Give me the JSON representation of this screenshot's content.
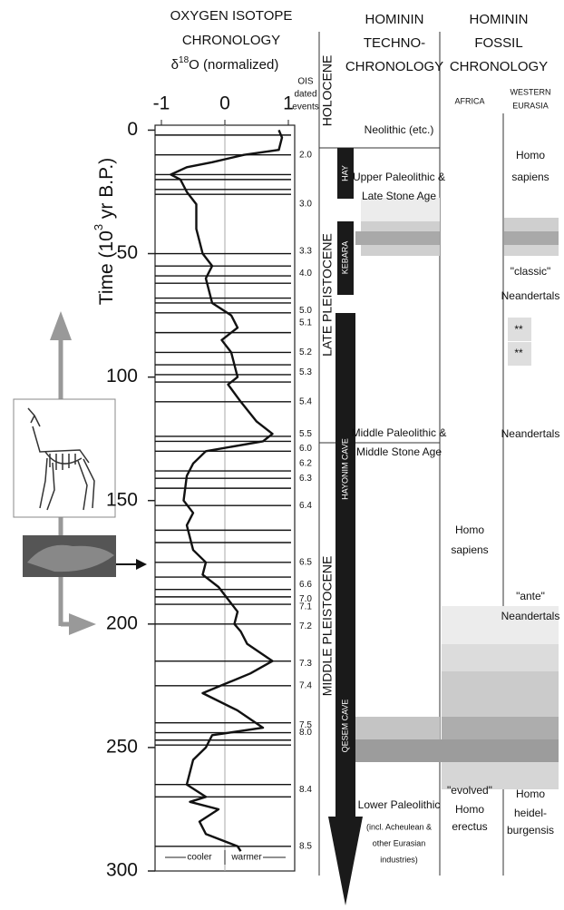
{
  "chart_data": {
    "type": "line",
    "title_lines": [
      "OXYGEN ISOTOPE",
      "CHRONOLOGY"
    ],
    "value_axis_label": {
      "symbol": "δ",
      "superscript": "18",
      "rest": "O (normalized)"
    },
    "time_axis_label": {
      "before": "Time (10",
      "superscript": "3",
      "after": " yr B.P.)"
    },
    "x": [
      0,
      3,
      8,
      10,
      13,
      15,
      18,
      20,
      25,
      30,
      40,
      50,
      55,
      60,
      65,
      70,
      75,
      80,
      85,
      90,
      95,
      100,
      103,
      110,
      118,
      123,
      126,
      130,
      135,
      140,
      150,
      155,
      160,
      170,
      175,
      180,
      185,
      190,
      195,
      200,
      203,
      208,
      215,
      220,
      228,
      235,
      242,
      245,
      250,
      255,
      260,
      265,
      270,
      272,
      275,
      280,
      285,
      290,
      292
    ],
    "series": [
      {
        "color": "#111111",
        "values": [
          0.85,
          0.9,
          0.85,
          0.3,
          -0.2,
          -0.6,
          -0.85,
          -0.7,
          -0.6,
          -0.45,
          -0.45,
          -0.35,
          -0.2,
          -0.3,
          -0.25,
          -0.2,
          0.1,
          0.2,
          -0.05,
          0.1,
          0.15,
          0.2,
          0.05,
          0.25,
          0.5,
          0.75,
          0.6,
          -0.3,
          -0.5,
          -0.6,
          -0.65,
          -0.5,
          -0.6,
          -0.5,
          -0.3,
          -0.35,
          -0.1,
          0.05,
          0.2,
          0.15,
          0.25,
          0.35,
          0.75,
          0.4,
          -0.35,
          0.2,
          0.6,
          -0.2,
          -0.3,
          -0.5,
          -0.55,
          -0.6,
          -0.3,
          -0.55,
          -0.1,
          -0.4,
          -0.3,
          0.2,
          0.25
        ]
      }
    ],
    "xlim": [
      -2,
      300
    ],
    "xticks": [
      0,
      50,
      100,
      150,
      200,
      250,
      300
    ],
    "ylim": [
      -1.1,
      1.1
    ],
    "yticks": [
      -1,
      0,
      1
    ],
    "zero_line": true,
    "event_lines": [
      2,
      10,
      18,
      20,
      24,
      26,
      50,
      55,
      59,
      62,
      68,
      70,
      74,
      82,
      90,
      95,
      99,
      102,
      110,
      124,
      126,
      130,
      138,
      141,
      145,
      152,
      162,
      167,
      175,
      181,
      186,
      189,
      192,
      200,
      215,
      225,
      240,
      244,
      247,
      249,
      265,
      270,
      290
    ],
    "ois_header": [
      "OIS",
      "dated",
      "events"
    ],
    "ois_events": [
      {
        "label": "2.0",
        "time": 10
      },
      {
        "label": "3.0",
        "time": 30
      },
      {
        "label": "3.3",
        "time": 49
      },
      {
        "label": "4.0",
        "time": 58
      },
      {
        "label": "5.0",
        "time": 73
      },
      {
        "label": "5.1",
        "time": 78
      },
      {
        "label": "5.2",
        "time": 90
      },
      {
        "label": "5.3",
        "time": 98
      },
      {
        "label": "5.4",
        "time": 110
      },
      {
        "label": "5.5",
        "time": 123
      },
      {
        "label": "6.0",
        "time": 129
      },
      {
        "label": "6.2",
        "time": 135
      },
      {
        "label": "6.3",
        "time": 141
      },
      {
        "label": "6.4",
        "time": 152
      },
      {
        "label": "6.5",
        "time": 175
      },
      {
        "label": "6.6",
        "time": 184
      },
      {
        "label": "7.0",
        "time": 190
      },
      {
        "label": "7.1",
        "time": 193
      },
      {
        "label": "7.2",
        "time": 201
      },
      {
        "label": "7.3",
        "time": 216
      },
      {
        "label": "7.4",
        "time": 225
      },
      {
        "label": "7.5",
        "time": 241
      },
      {
        "label": "8.0",
        "time": 244
      },
      {
        "label": "8.4",
        "time": 267
      },
      {
        "label": "8.5",
        "time": 290
      }
    ],
    "direction_labels": {
      "left": "cooler",
      "right": "warmer"
    }
  },
  "epochs": [
    "HOLOCENE",
    "LATE PLEISTOCENE",
    "MIDDLE PLEISTOCENE"
  ],
  "sites": [
    "HAY",
    "KEBARA",
    "HAYONIM CAVE",
    "QESEM CAVE"
  ],
  "techno": {
    "title_lines": [
      "HOMININ",
      "TECHNO-",
      "CHRONOLOGY"
    ],
    "periods": [
      [
        "Neolithic (etc.)"
      ],
      [
        "Upper Paleolithic &",
        "Late Stone Age"
      ],
      [
        "Middle Paleolithic &",
        "Middle Stone Age"
      ],
      [
        "Lower Paleolithic"
      ]
    ],
    "lower_note": [
      "(incl. Acheulean &",
      "other Eurasian",
      "industries)"
    ]
  },
  "fossil": {
    "title_lines": [
      "HOMININ",
      "FOSSIL",
      "CHRONOLOGY"
    ],
    "africa": {
      "header": "AFRICA",
      "labels": [
        "Homo",
        "sapiens",
        "\"evolved\"",
        "Homo",
        "erectus"
      ]
    },
    "eurasia": {
      "header_lines": [
        "WESTERN",
        "EURASIA"
      ],
      "labels": [
        "Homo",
        "sapiens",
        "\"classic\"",
        "Neandertals",
        "**",
        "**",
        "Neandertals",
        "\"ante\"",
        "Neandertals",
        "Homo",
        "heidel-",
        "burgensis"
      ]
    }
  }
}
